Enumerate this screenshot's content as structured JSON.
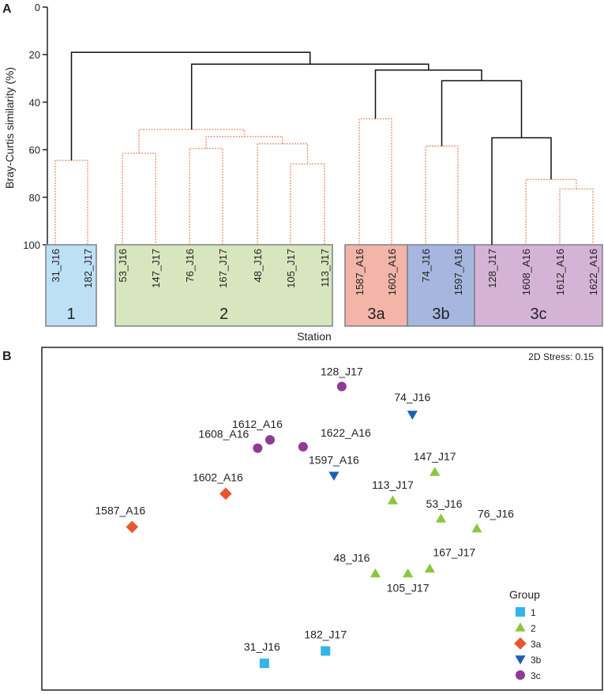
{
  "chart_data": [
    {
      "type": "dendrogram",
      "panel_label": "A",
      "ylabel": "Bray-Curtis similarity (%)",
      "xlabel": "Station",
      "ylim": [
        0,
        100
      ],
      "yticks": [
        "0",
        "20",
        "40",
        "60",
        "80",
        "100"
      ],
      "groups": [
        {
          "name": "1",
          "color": "#bde0f4",
          "stations": [
            "31_J16",
            "182_J17"
          ]
        },
        {
          "name": "2",
          "color": "#d8e6bf",
          "stations": [
            "53_J16",
            "147_J17",
            "76_J16",
            "167_J17",
            "48_J16",
            "105_J17",
            "113_J17"
          ]
        },
        {
          "name": "3a",
          "color": "#f2b5a8",
          "stations": [
            "1587_A16",
            "1602_A16"
          ]
        },
        {
          "name": "3b",
          "color": "#a7b6de",
          "stations": [
            "74_J16",
            "1597_A16"
          ]
        },
        {
          "name": "3c",
          "color": "#d5b3d6",
          "stations": [
            "128_J17",
            "1608_A16",
            "1612_A16",
            "1622_A16"
          ]
        }
      ],
      "merges": [
        {
          "a": "31_J16",
          "b": "182_J17",
          "similarity": 64.5,
          "id": "m1",
          "style": "dotted"
        },
        {
          "a": "53_J16",
          "b": "147_J17",
          "similarity": 61.5,
          "id": "m2a",
          "style": "dotted"
        },
        {
          "a": "105_J17",
          "b": "113_J17",
          "similarity": 66,
          "id": "m2b",
          "style": "dotted"
        },
        {
          "a": "48_J16",
          "b": "m2b",
          "similarity": 57.5,
          "id": "m2c",
          "style": "dotted"
        },
        {
          "a": "76_J16",
          "b": "167_J17",
          "similarity": 59.5,
          "id": "m2d",
          "style": "dotted"
        },
        {
          "a": "m2d",
          "b": "m2c",
          "similarity": 54.5,
          "id": "m2e",
          "style": "dotted"
        },
        {
          "a": "m2a",
          "b": "m2e",
          "similarity": 51.5,
          "id": "m2",
          "style": "dotted"
        },
        {
          "a": "1587_A16",
          "b": "1602_A16",
          "similarity": 47,
          "id": "m3a",
          "style": "dotted"
        },
        {
          "a": "74_J16",
          "b": "1597_A16",
          "similarity": 58.5,
          "id": "m3b",
          "style": "dotted"
        },
        {
          "a": "1612_A16",
          "b": "1622_A16",
          "similarity": 76.5,
          "id": "m3c1",
          "style": "dotted"
        },
        {
          "a": "1608_A16",
          "b": "m3c1",
          "similarity": 72.5,
          "id": "m3c2",
          "style": "dotted"
        },
        {
          "a": "128_J17",
          "b": "m3c2",
          "similarity": 55,
          "id": "m3c",
          "style": "solid"
        },
        {
          "a": "m3b",
          "b": "m3c",
          "similarity": 31,
          "id": "m3bc",
          "style": "solid"
        },
        {
          "a": "m3a",
          "b": "m3bc",
          "similarity": 26.5,
          "id": "m3",
          "style": "solid"
        },
        {
          "a": "m2",
          "b": "m3",
          "similarity": 24,
          "id": "m23",
          "style": "solid"
        },
        {
          "a": "m1",
          "b": "m23",
          "similarity": 19,
          "id": "root",
          "style": "solid"
        }
      ]
    },
    {
      "type": "scatter",
      "panel_label": "B",
      "title": "2D Stress: 0.15",
      "legend_title": "Group",
      "legend_position": "bottom-right",
      "xlim": [
        0,
        100
      ],
      "ylim": [
        0,
        100
      ],
      "groups": [
        {
          "name": "1",
          "marker": "square",
          "color": "#33b5e8"
        },
        {
          "name": "2",
          "marker": "triangle-up",
          "color": "#8cc63e"
        },
        {
          "name": "3a",
          "marker": "diamond",
          "color": "#e8562f"
        },
        {
          "name": "3b",
          "marker": "triangle-down",
          "color": "#1e5fb3"
        },
        {
          "name": "3c",
          "marker": "circle",
          "color": "#8e3a96"
        }
      ],
      "points": [
        {
          "label": "128_J17",
          "group": "3c",
          "x": 53.5,
          "y": 88.6
        },
        {
          "label": "74_J16",
          "group": "3b",
          "x": 66.1,
          "y": 80.4
        },
        {
          "label": "1612_A16",
          "group": "3c",
          "x": 40.7,
          "y": 73.0
        },
        {
          "label": "1608_A16",
          "group": "3c",
          "x": 38.5,
          "y": 70.6
        },
        {
          "label": "1622_A16",
          "group": "3c",
          "x": 46.6,
          "y": 71.0
        },
        {
          "label": "1597_A16",
          "group": "3b",
          "x": 52.1,
          "y": 62.6
        },
        {
          "label": "147_J17",
          "group": "2",
          "x": 70.1,
          "y": 63.6
        },
        {
          "label": "113_J17",
          "group": "2",
          "x": 62.6,
          "y": 55.3
        },
        {
          "label": "53_J16",
          "group": "2",
          "x": 71.2,
          "y": 50.0
        },
        {
          "label": "76_J16",
          "group": "2",
          "x": 77.6,
          "y": 47.1
        },
        {
          "label": "1602_A16",
          "group": "3a",
          "x": 32.8,
          "y": 57.3
        },
        {
          "label": "1587_A16",
          "group": "3a",
          "x": 16.1,
          "y": 47.6
        },
        {
          "label": "48_J16",
          "group": "2",
          "x": 59.5,
          "y": 34.0
        },
        {
          "label": "105_J17",
          "group": "2",
          "x": 65.3,
          "y": 34.0
        },
        {
          "label": "167_J17",
          "group": "2",
          "x": 69.2,
          "y": 35.4
        },
        {
          "label": "182_J17",
          "group": "1",
          "x": 50.6,
          "y": 11.4
        },
        {
          "label": "31_J16",
          "group": "1",
          "x": 39.7,
          "y": 7.8
        }
      ]
    }
  ]
}
